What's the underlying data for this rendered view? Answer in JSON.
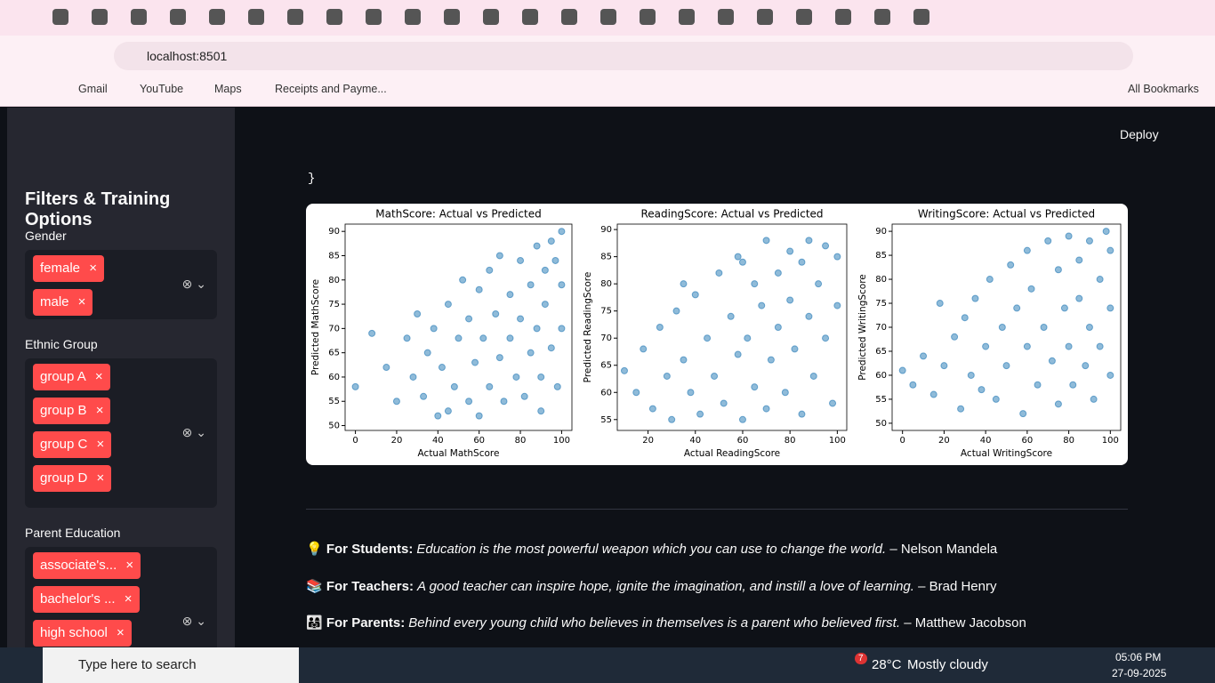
{
  "browser": {
    "address": "localhost:8501",
    "bookmarks": [
      "Gmail",
      "YouTube",
      "Maps",
      "Receipts and Payme..."
    ],
    "all_bookmarks": "All Bookmarks"
  },
  "app": {
    "deploy": "Deploy",
    "code_tail": "}"
  },
  "sidebar": {
    "title": "Filters & Training Options",
    "filters": [
      {
        "label": "Gender",
        "chips": [
          "female",
          "male"
        ]
      },
      {
        "label": "Ethnic Group",
        "chips": [
          "group A",
          "group B",
          "group C",
          "group D"
        ]
      },
      {
        "label": "Parent Education",
        "chips": [
          "associate's...",
          "bachelor's ...",
          "high school"
        ]
      }
    ]
  },
  "chart_data": [
    {
      "type": "scatter",
      "title": "MathScore: Actual vs Predicted",
      "x_label": "Actual MathScore",
      "y_label": "Predicted MathScore",
      "color": "#1f77b4",
      "xlim": [
        -5,
        105
      ],
      "ylim": [
        49,
        91.5
      ],
      "xticks": [
        0,
        20,
        40,
        60,
        80,
        100
      ],
      "yticks": [
        50,
        55,
        60,
        65,
        70,
        75,
        80,
        85,
        90
      ],
      "x": [
        0,
        8,
        15,
        20,
        25,
        28,
        30,
        33,
        35,
        38,
        40,
        42,
        45,
        48,
        50,
        52,
        55,
        55,
        58,
        60,
        60,
        62,
        65,
        65,
        68,
        70,
        70,
        72,
        75,
        75,
        78,
        80,
        80,
        82,
        85,
        85,
        88,
        88,
        90,
        92,
        92,
        95,
        95,
        98,
        100,
        100,
        100,
        97,
        90,
        45
      ],
      "y": [
        58,
        69,
        62,
        55,
        68,
        60,
        73,
        56,
        65,
        70,
        52,
        62,
        75,
        58,
        68,
        80,
        55,
        72,
        63,
        78,
        52,
        68,
        82,
        58,
        73,
        64,
        85,
        55,
        77,
        68,
        60,
        84,
        72,
        56,
        79,
        65,
        87,
        70,
        60,
        82,
        75,
        66,
        88,
        58,
        79,
        90,
        70,
        84,
        53,
        53
      ]
    },
    {
      "type": "scatter",
      "title": "ReadingScore: Actual vs Predicted",
      "x_label": "Actual ReadingScore",
      "y_label": "Predicted ReadingScore",
      "color": "#1f77b4",
      "xlim": [
        7,
        104
      ],
      "ylim": [
        53,
        91
      ],
      "xticks": [
        20,
        40,
        60,
        80,
        100
      ],
      "yticks": [
        55,
        60,
        65,
        70,
        75,
        80,
        85,
        90
      ],
      "x": [
        10,
        15,
        18,
        22,
        25,
        28,
        30,
        32,
        35,
        38,
        40,
        42,
        45,
        48,
        50,
        52,
        55,
        58,
        60,
        60,
        62,
        65,
        65,
        68,
        70,
        70,
        72,
        75,
        75,
        78,
        80,
        80,
        82,
        85,
        85,
        88,
        88,
        90,
        92,
        95,
        95,
        98,
        100,
        100,
        58,
        35
      ],
      "y": [
        64,
        60,
        68,
        57,
        72,
        63,
        55,
        75,
        66,
        60,
        78,
        56,
        70,
        63,
        82,
        58,
        74,
        67,
        55,
        84,
        70,
        61,
        80,
        76,
        57,
        88,
        66,
        82,
        72,
        60,
        86,
        77,
        68,
        56,
        84,
        74,
        88,
        63,
        80,
        70,
        87,
        58,
        76,
        85,
        85,
        80
      ]
    },
    {
      "type": "scatter",
      "title": "WritingScore: Actual vs Predicted",
      "x_label": "Actual WritingScore",
      "y_label": "Predicted WritingScore",
      "color": "#1f77b4",
      "xlim": [
        -5,
        105
      ],
      "ylim": [
        48.5,
        91.5
      ],
      "xticks": [
        0,
        20,
        40,
        60,
        80,
        100
      ],
      "yticks": [
        50,
        55,
        60,
        65,
        70,
        75,
        80,
        85,
        90
      ],
      "x": [
        0,
        5,
        10,
        15,
        18,
        20,
        25,
        28,
        30,
        33,
        35,
        38,
        40,
        42,
        45,
        48,
        50,
        52,
        55,
        58,
        60,
        60,
        62,
        65,
        68,
        70,
        72,
        75,
        75,
        78,
        80,
        80,
        82,
        85,
        85,
        88,
        90,
        90,
        92,
        95,
        95,
        98,
        100,
        100,
        100
      ],
      "y": [
        61,
        58,
        64,
        56,
        75,
        62,
        68,
        53,
        72,
        60,
        76,
        57,
        66,
        80,
        55,
        70,
        62,
        83,
        74,
        52,
        66,
        86,
        78,
        58,
        70,
        88,
        63,
        82,
        54,
        74,
        89,
        66,
        58,
        84,
        76,
        62,
        88,
        70,
        55,
        80,
        66,
        90,
        74,
        86,
        60
      ]
    }
  ],
  "quotes": [
    {
      "icon": "💡",
      "label": "For Students:",
      "text": "Education is the most powerful weapon which you can use to change the world.",
      "author": "– Nelson Mandela"
    },
    {
      "icon": "📚",
      "label": "For Teachers:",
      "text": "A good teacher can inspire hope, ignite the imagination, and instill a love of learning.",
      "author": "– Brad Henry"
    },
    {
      "icon": "👨‍👩‍👧",
      "label": "For Parents:",
      "text": "Behind every young child who believes in themselves is a parent who believed first.",
      "author": "– Matthew Jacobson"
    }
  ],
  "taskbar": {
    "search": "Type here to search",
    "badge": "7",
    "temperature": "28°C",
    "weather": "Mostly cloudy",
    "time": "05:06 PM",
    "date": "27-09-2025"
  }
}
